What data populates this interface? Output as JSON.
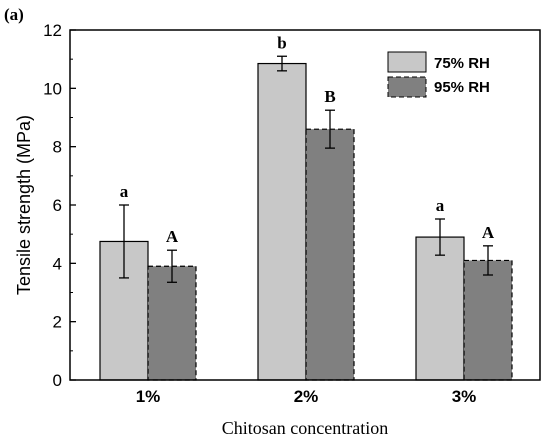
{
  "panel_label": "(a)",
  "chart_data": {
    "type": "bar",
    "categories": [
      "1%",
      "2%",
      "3%"
    ],
    "series": [
      {
        "name": "75% RH",
        "values": [
          4.75,
          10.85,
          4.9
        ],
        "errors": [
          1.25,
          0.25,
          0.62
        ],
        "significance": [
          "a",
          "b",
          "a"
        ],
        "color": "#c8c8c8",
        "border": "solid"
      },
      {
        "name": "95% RH",
        "values": [
          3.9,
          8.6,
          4.1
        ],
        "errors": [
          0.55,
          0.65,
          0.5
        ],
        "significance": [
          "A",
          "B",
          "A"
        ],
        "color": "#808080",
        "border": "dashed"
      }
    ],
    "xlabel": "Chitosan concentration",
    "ylabel": "Tensile strength (MPa)",
    "ylim": [
      0,
      12
    ],
    "yticks": [
      0,
      2,
      4,
      6,
      8,
      10,
      12
    ],
    "grid": false,
    "legend": "top-right"
  }
}
